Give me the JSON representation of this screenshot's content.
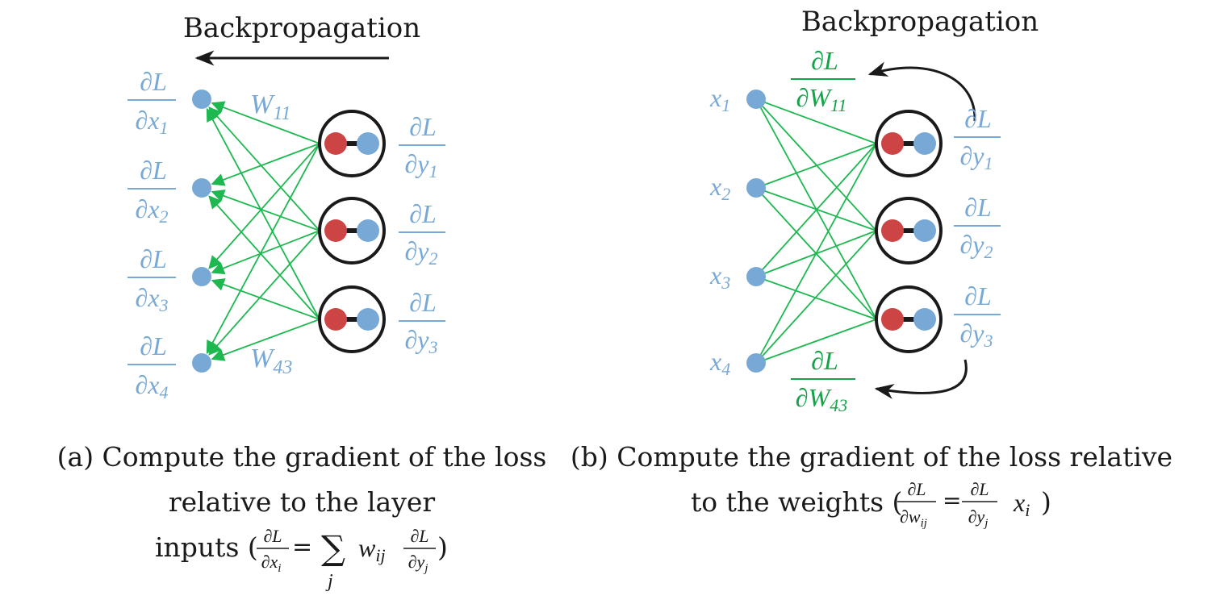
{
  "colors": {
    "input_node": "#78a9d6",
    "output_node": "#78a9d6",
    "neuron_pre": "#cc4444",
    "edge": "#1db84f",
    "label_blue": "#78a9d6",
    "label_green": "#15a34a",
    "dark": "#1a1a1a"
  },
  "panel_a": {
    "title": "Backpropagation",
    "input_grad_numerator": "∂L",
    "input_grad_denoms": [
      "∂x",
      "∂x",
      "∂x",
      "∂x"
    ],
    "input_grad_subs": [
      "1",
      "2",
      "3",
      "4"
    ],
    "output_grad_numerator": "∂L",
    "output_grad_denoms": [
      "∂y",
      "∂y",
      "∂y"
    ],
    "output_grad_subs": [
      "1",
      "2",
      "3"
    ],
    "weight_top": {
      "letter": "W",
      "sub": "11"
    },
    "weight_bottom": {
      "letter": "W",
      "sub": "43"
    },
    "caption_line1": "(a) Compute the gradient of the loss",
    "caption_line2": "relative to the layer",
    "caption_line3_prefix": "inputs (",
    "caption_line3_suffix": ")",
    "caption_formula": {
      "lhs_num": "∂L",
      "lhs_den": "∂x",
      "lhs_sub": "i",
      "equals": "=",
      "sum": "∑",
      "sum_index": "j",
      "w": "w",
      "w_sub": "ij",
      "rhs_num": "∂L",
      "rhs_den": "∂y",
      "rhs_sub": "j"
    }
  },
  "panel_b": {
    "title": "Backpropagation",
    "inputs": [
      "x",
      "x",
      "x",
      "x"
    ],
    "input_subs": [
      "1",
      "2",
      "3",
      "4"
    ],
    "output_grad_numerator": "∂L",
    "output_grad_denoms": [
      "∂y",
      "∂y",
      "∂y"
    ],
    "output_grad_subs": [
      "1",
      "2",
      "3"
    ],
    "weight_grad_top": {
      "num": "∂L",
      "den": "∂W",
      "sub": "11"
    },
    "weight_grad_bottom": {
      "num": "∂L",
      "den": "∂W",
      "sub": "43"
    },
    "caption_line1": "(b) Compute the gradient of the loss relative",
    "caption_line2_prefix": "to the weights (",
    "caption_line2_suffix": ")",
    "caption_formula": {
      "lhs_num": "∂L",
      "lhs_den": "∂w",
      "lhs_sub": "ij",
      "equals": "=",
      "rhs_num": "∂L",
      "rhs_den": "∂y",
      "rhs_sub": "j",
      "x": "x",
      "x_sub": "i"
    }
  }
}
